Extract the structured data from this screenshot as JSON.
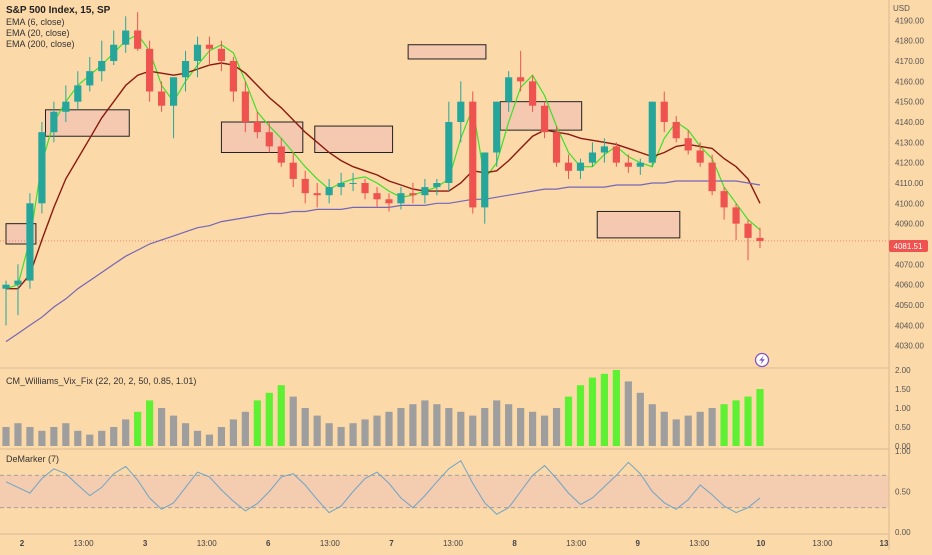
{
  "header": {
    "symbol": "S&P 500 Index, 15, SP",
    "studies": [
      "EMA (6, close)",
      "EMA (20, close)",
      "EMA (200, close)"
    ]
  },
  "currency_label": "USD",
  "last_price_label": "4081.51",
  "colors": {
    "background": "#fcd9a8",
    "candle_up": "#26a69a",
    "candle_down": "#ef5350",
    "ema6": "#3ce02a",
    "ema20": "#8b1a10",
    "ema200": "#7466b8",
    "vix_high": "#5ef032",
    "vix_normal": "#9e9e9e",
    "demarker": "#6fa5c8",
    "demarker_band": "#f2c9b0",
    "zone_fill": "#f4c9b0"
  },
  "lightning_icon": "lightning-icon",
  "chart_data": [
    {
      "type": "candlestick",
      "title": "S&P 500 Index, 15, SP",
      "ylabel": "USD",
      "ylim": [
        4020,
        4200
      ],
      "yticks": [
        4030,
        4040,
        4050,
        4060,
        4070,
        4080,
        4090,
        4100,
        4110,
        4120,
        4130,
        4140,
        4150,
        4160,
        4170,
        4180,
        4190
      ],
      "x_tick_labels": [
        "2",
        "13:00",
        "3",
        "13:00",
        "6",
        "13:00",
        "7",
        "13:00",
        "8",
        "13:00",
        "9",
        "13:00",
        "10",
        "13:00",
        "13"
      ],
      "last_price": 4081.51,
      "grid": false,
      "ema_series": [
        {
          "name": "EMA (6, close)",
          "values": [
            4058,
            4060,
            4082,
            4120,
            4140,
            4150,
            4158,
            4163,
            4168,
            4174,
            4180,
            4183,
            4175,
            4158,
            4150,
            4160,
            4168,
            4175,
            4178,
            4174,
            4160,
            4145,
            4138,
            4132,
            4125,
            4118,
            4112,
            4107,
            4110,
            4112,
            4113,
            4110,
            4106,
            4103,
            4104,
            4106,
            4108,
            4112,
            4132,
            4147,
            4112,
            4120,
            4140,
            4157,
            4163,
            4153,
            4138,
            4125,
            4118,
            4118,
            4124,
            4128,
            4123,
            4120,
            4118,
            4132,
            4140,
            4136,
            4128,
            4122,
            4108,
            4100,
            4092,
            4087
          ]
        },
        {
          "name": "EMA (20, close)",
          "values": [
            4058,
            4058,
            4065,
            4082,
            4098,
            4112,
            4122,
            4132,
            4142,
            4150,
            4158,
            4163,
            4165,
            4164,
            4163,
            4164,
            4166,
            4168,
            4169,
            4168,
            4164,
            4158,
            4152,
            4147,
            4141,
            4135,
            4130,
            4125,
            4121,
            4118,
            4116,
            4114,
            4111,
            4109,
            4107,
            4106,
            4106,
            4106,
            4110,
            4116,
            4115,
            4116,
            4121,
            4127,
            4133,
            4136,
            4135,
            4134,
            4132,
            4131,
            4130,
            4129,
            4127,
            4125,
            4123,
            4125,
            4128,
            4129,
            4128,
            4127,
            4122,
            4118,
            4112,
            4100
          ]
        },
        {
          "name": "EMA (200, close)",
          "values": [
            4032,
            4036,
            4040,
            4044,
            4049,
            4053,
            4058,
            4062,
            4066,
            4070,
            4074,
            4077,
            4080,
            4082,
            4084,
            4086,
            4088,
            4089,
            4091,
            4092,
            4093,
            4094,
            4095,
            4095,
            4096,
            4096,
            4097,
            4097,
            4097,
            4098,
            4098,
            4098,
            4098,
            4099,
            4099,
            4099,
            4100,
            4100,
            4101,
            4102,
            4102,
            4103,
            4104,
            4105,
            4106,
            4107,
            4107,
            4108,
            4108,
            4108,
            4108,
            4109,
            4109,
            4109,
            4110,
            4110,
            4111,
            4111,
            4111,
            4111,
            4111,
            4111,
            4110,
            4109
          ]
        }
      ],
      "candles": {
        "open": [
          4058,
          4060,
          4062,
          4100,
          4135,
          4145,
          4150,
          4158,
          4165,
          4170,
          4178,
          4185,
          4176,
          4155,
          4148,
          4162,
          4170,
          4178,
          4176,
          4170,
          4155,
          4140,
          4135,
          4128,
          4120,
          4112,
          4105,
          4104,
          4108,
          4110,
          4110,
          4105,
          4102,
          4100,
          4105,
          4104,
          4108,
          4110,
          4140,
          4150,
          4098,
          4125,
          4150,
          4162,
          4160,
          4148,
          4135,
          4120,
          4116,
          4120,
          4125,
          4128,
          4120,
          4118,
          4120,
          4150,
          4140,
          4132,
          4126,
          4120,
          4106,
          4098,
          4090,
          4083
        ],
        "high": [
          4062,
          4070,
          4105,
          4140,
          4150,
          4158,
          4165,
          4172,
          4180,
          4185,
          4192,
          4194,
          4180,
          4160,
          4162,
          4175,
          4182,
          4182,
          4180,
          4172,
          4160,
          4145,
          4140,
          4132,
          4125,
          4116,
          4110,
          4112,
          4115,
          4115,
          4112,
          4108,
          4105,
          4108,
          4110,
          4112,
          4112,
          4150,
          4160,
          4155,
          4125,
          4150,
          4165,
          4175,
          4163,
          4150,
          4138,
          4124,
          4122,
          4130,
          4132,
          4130,
          4124,
          4122,
          4150,
          4155,
          4143,
          4136,
          4130,
          4124,
          4108,
          4100,
          4092,
          4088
        ],
        "low": [
          4040,
          4045,
          4058,
          4095,
          4130,
          4140,
          4146,
          4155,
          4160,
          4168,
          4174,
          4175,
          4150,
          4145,
          4132,
          4155,
          4162,
          4168,
          4165,
          4150,
          4135,
          4132,
          4125,
          4118,
          4108,
          4100,
          4098,
          4100,
          4104,
          4106,
          4102,
          4098,
          4096,
          4097,
          4100,
          4100,
          4104,
          4106,
          4130,
          4095,
          4090,
          4118,
          4145,
          4155,
          4145,
          4132,
          4118,
          4112,
          4112,
          4118,
          4120,
          4118,
          4115,
          4114,
          4118,
          4135,
          4130,
          4124,
          4118,
          4104,
          4092,
          4082,
          4072,
          4078
        ],
        "close": [
          4060,
          4062,
          4100,
          4135,
          4145,
          4150,
          4158,
          4165,
          4170,
          4178,
          4185,
          4176,
          4155,
          4148,
          4162,
          4170,
          4178,
          4176,
          4170,
          4155,
          4140,
          4135,
          4128,
          4120,
          4112,
          4105,
          4104,
          4108,
          4110,
          4110,
          4105,
          4102,
          4100,
          4105,
          4104,
          4108,
          4110,
          4140,
          4150,
          4098,
          4125,
          4150,
          4162,
          4160,
          4148,
          4135,
          4120,
          4116,
          4120,
          4125,
          4128,
          4120,
          4118,
          4120,
          4150,
          4140,
          4132,
          4126,
          4120,
          4106,
          4098,
          4090,
          4083,
          4081.51
        ]
      },
      "zones": [
        {
          "x_start": 0,
          "x_end": 2.5,
          "top": 4090,
          "bottom": 4080
        },
        {
          "x_start": 3.3,
          "x_end": 10.3,
          "top": 4146,
          "bottom": 4133
        },
        {
          "x_start": 18,
          "x_end": 24.8,
          "top": 4140,
          "bottom": 4125
        },
        {
          "x_start": 25.8,
          "x_end": 32.3,
          "top": 4138,
          "bottom": 4125
        },
        {
          "x_start": 33.6,
          "x_end": 40.1,
          "top": 4178,
          "bottom": 4171
        },
        {
          "x_start": 41.3,
          "x_end": 48.1,
          "top": 4150,
          "bottom": 4136
        },
        {
          "x_start": 49.4,
          "x_end": 56.3,
          "top": 4096,
          "bottom": 4083
        }
      ]
    },
    {
      "type": "bar",
      "title": "CM_Williams_Vix_Fix (22, 20, 2, 50, 0.85, 1.01)",
      "ylim": [
        0,
        2.0
      ],
      "yticks": [
        "2.00",
        "1.50",
        "1.00",
        "0.50",
        "0.00"
      ],
      "values": [
        0.5,
        0.6,
        0.5,
        0.4,
        0.5,
        0.6,
        0.4,
        0.3,
        0.4,
        0.5,
        0.7,
        0.9,
        1.2,
        1.0,
        0.8,
        0.6,
        0.4,
        0.3,
        0.5,
        0.7,
        0.9,
        1.2,
        1.4,
        1.6,
        1.3,
        1.0,
        0.8,
        0.6,
        0.5,
        0.6,
        0.7,
        0.8,
        0.9,
        1.0,
        1.1,
        1.2,
        1.1,
        1.0,
        0.9,
        0.8,
        1.0,
        1.2,
        1.1,
        1.0,
        0.9,
        0.8,
        1.0,
        1.3,
        1.6,
        1.8,
        1.9,
        2.0,
        1.7,
        1.4,
        1.1,
        0.9,
        0.7,
        0.8,
        0.9,
        1.0,
        1.1,
        1.2,
        1.3,
        1.5
      ],
      "highlight": [
        false,
        false,
        false,
        false,
        false,
        false,
        false,
        false,
        false,
        false,
        false,
        true,
        true,
        false,
        false,
        false,
        false,
        false,
        false,
        false,
        false,
        true,
        true,
        true,
        false,
        false,
        false,
        false,
        false,
        false,
        false,
        false,
        false,
        false,
        false,
        false,
        false,
        false,
        false,
        false,
        false,
        false,
        false,
        false,
        false,
        false,
        false,
        true,
        true,
        true,
        true,
        true,
        false,
        false,
        false,
        false,
        false,
        false,
        false,
        false,
        true,
        true,
        true,
        true
      ]
    },
    {
      "type": "line",
      "title": "DeMarker (7)",
      "ylim": [
        0,
        1.0
      ],
      "yticks": [
        "1.00",
        "0.50",
        "0.00"
      ],
      "band": [
        0.3,
        0.7
      ],
      "values": [
        0.62,
        0.55,
        0.48,
        0.66,
        0.78,
        0.72,
        0.58,
        0.45,
        0.55,
        0.72,
        0.81,
        0.64,
        0.42,
        0.28,
        0.36,
        0.55,
        0.74,
        0.68,
        0.52,
        0.38,
        0.26,
        0.35,
        0.5,
        0.68,
        0.72,
        0.58,
        0.4,
        0.24,
        0.32,
        0.5,
        0.66,
        0.74,
        0.6,
        0.42,
        0.3,
        0.45,
        0.62,
        0.78,
        0.88,
        0.6,
        0.36,
        0.22,
        0.3,
        0.5,
        0.7,
        0.82,
        0.66,
        0.48,
        0.34,
        0.42,
        0.56,
        0.7,
        0.86,
        0.72,
        0.5,
        0.36,
        0.28,
        0.4,
        0.58,
        0.46,
        0.32,
        0.24,
        0.3,
        0.42
      ]
    }
  ]
}
